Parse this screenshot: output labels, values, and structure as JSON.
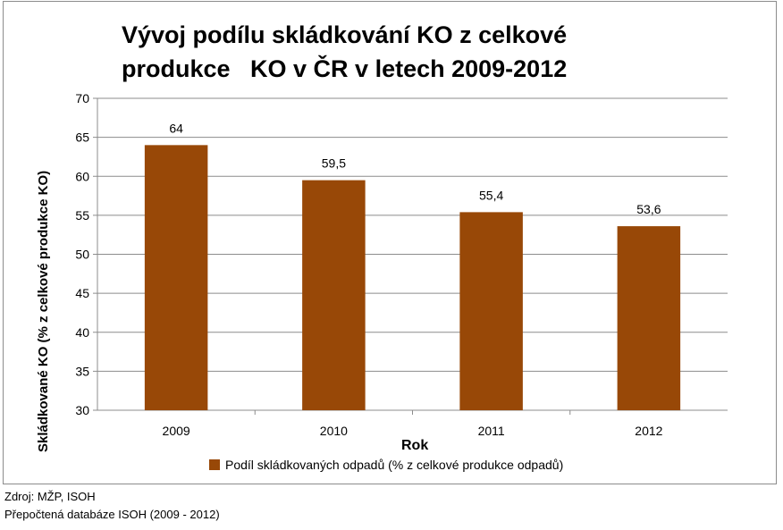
{
  "chart_data": {
    "type": "bar",
    "title_lines": [
      "Vývoj podílu skládkování KO z celkové",
      "produkce   KO v ČR v letech 2009-2012"
    ],
    "xlabel": "Rok",
    "ylabel": "Skládkované KO (% z celkové produkce  KO)",
    "categories": [
      "2009",
      "2010",
      "2011",
      "2012"
    ],
    "series": [
      {
        "name": "Podíl skládkovaných odpadů (% z celkové produkce odpadů)",
        "values": [
          64,
          59.5,
          55.4,
          53.6
        ],
        "data_labels": [
          "64",
          "59,5",
          "55,4",
          "53,6"
        ],
        "color": "#984807"
      }
    ],
    "ylim": [
      30,
      70
    ],
    "yticks": [
      30,
      35,
      40,
      45,
      50,
      55,
      60,
      65,
      70
    ],
    "grid": true,
    "legend": "bottom"
  },
  "source": {
    "line1": "Zdroj: MŽP, ISOH",
    "line2": "Přepočtená databáze ISOH (2009 - 2012)"
  }
}
